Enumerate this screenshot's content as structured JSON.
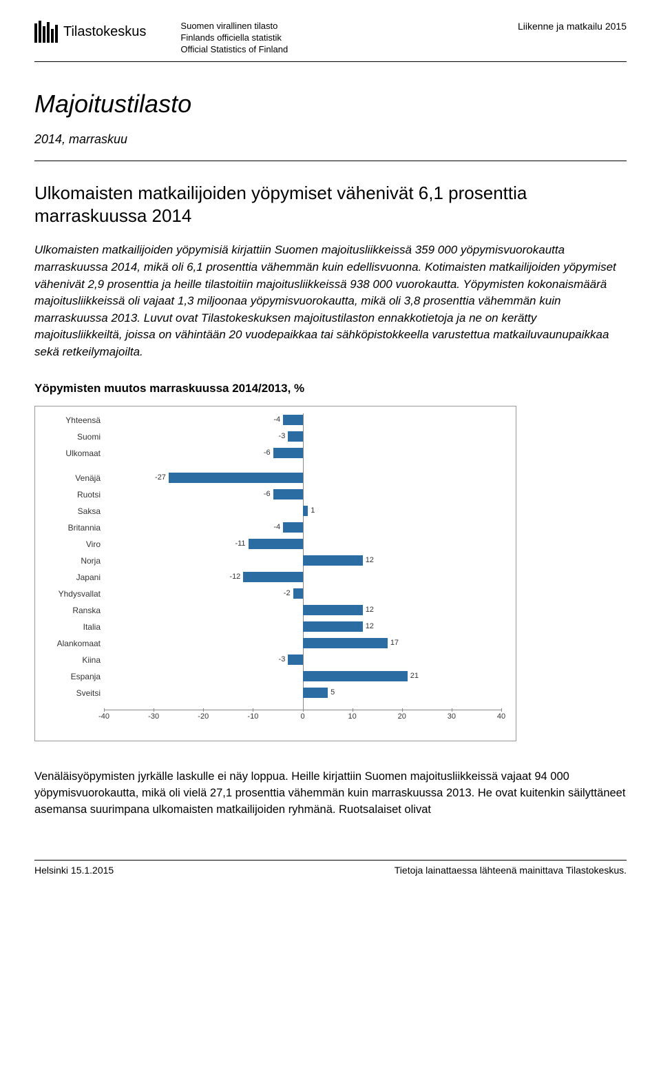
{
  "header": {
    "logo_text": "Tilastokeskus",
    "org_line1": "Suomen virallinen tilasto",
    "org_line2": "Finlands officiella statistik",
    "org_line3": "Official Statistics of Finland",
    "right_text": "Liikenne ja matkailu 2015"
  },
  "main_title": "Majoitustilasto",
  "subtitle": "2014, marraskuu",
  "section_heading": "Ulkomaisten matkailijoiden yöpymiset vähenivät 6,1 prosenttia marraskuussa 2014",
  "intro_paragraph": "Ulkomaisten matkailijoiden yöpymisiä kirjattiin Suomen majoitusliikkeissä 359 000 yöpymisvuorokautta marraskuussa 2014, mikä oli 6,1 prosenttia vähemmän kuin edellisvuonna. Kotimaisten matkailijoiden yöpymiset vähenivät 2,9 prosenttia ja heille tilastoitiin majoitusliikkeissä 938 000 vuorokautta. Yöpymisten kokonaismäärä majoitusliikkeissä oli vajaat 1,3 miljoonaa yöpymisvuorokautta, mikä oli 3,8 prosenttia vähemmän kuin marraskuussa 2013. Luvut ovat Tilastokeskuksen majoitustilaston ennakkotietoja ja ne on kerätty majoitusliikkeiltä, joissa on vähintään 20 vuodepaikkaa tai sähköpistokkeella varustettua matkailuvaunupaikkaa sekä retkeilymajoilta.",
  "chart": {
    "title": "Yöpymisten muutos marraskuussa 2014/2013, %",
    "type": "bar",
    "xlim": [
      -40,
      40
    ],
    "xtick_step": 10,
    "xticks": [
      -40,
      -30,
      -20,
      -10,
      0,
      10,
      20,
      30,
      40
    ],
    "bar_color": "#2b6ca3",
    "background_color": "#ffffff",
    "axis_color": "#888888",
    "label_fontsize": 12,
    "value_fontsize": 11,
    "groups": [
      {
        "label": "Yhteensä",
        "value": -4
      },
      {
        "label": "Suomi",
        "value": -3
      },
      {
        "label": "Ulkomaat",
        "value": -6
      }
    ],
    "countries": [
      {
        "label": "Venäjä",
        "value": -27
      },
      {
        "label": "Ruotsi",
        "value": -6
      },
      {
        "label": "Saksa",
        "value": 1
      },
      {
        "label": "Britannia",
        "value": -4
      },
      {
        "label": "Viro",
        "value": -11
      },
      {
        "label": "Norja",
        "value": 12
      },
      {
        "label": "Japani",
        "value": -12
      },
      {
        "label": "Yhdysvallat",
        "value": -2
      },
      {
        "label": "Ranska",
        "value": 12
      },
      {
        "label": "Italia",
        "value": 12
      },
      {
        "label": "Alankomaat",
        "value": 17
      },
      {
        "label": "Kiina",
        "value": -3
      },
      {
        "label": "Espanja",
        "value": 21
      },
      {
        "label": "Sveitsi",
        "value": 5
      }
    ]
  },
  "body_paragraph": "Venäläisyöpymisten jyrkälle laskulle ei näy loppua. Heille kirjattiin Suomen majoitusliikkeissä vajaat 94 000 yöpymisvuorokautta, mikä oli vielä 27,1 prosenttia vähemmän kuin marraskuussa 2013. He ovat kuitenkin säilyttäneet asemansa suurimpana ulkomaisten matkailijoiden ryhmänä. Ruotsalaiset olivat",
  "footer": {
    "left": "Helsinki 15.1.2015",
    "right": "Tietoja lainattaessa lähteenä mainittava Tilastokeskus."
  }
}
